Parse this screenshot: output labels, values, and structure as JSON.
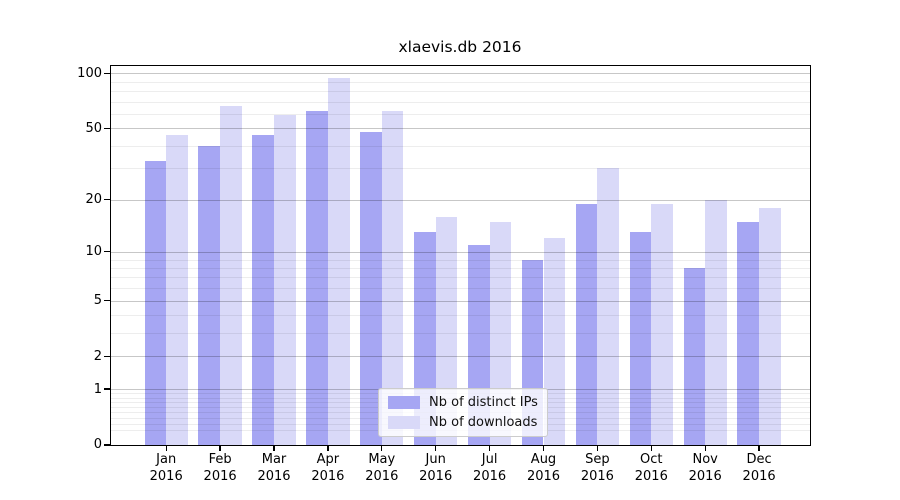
{
  "chart_data": {
    "type": "bar",
    "title": "xlaevis.db 2016",
    "categories": [
      "Jan",
      "Feb",
      "Mar",
      "Apr",
      "May",
      "Jun",
      "Jul",
      "Aug",
      "Sep",
      "Oct",
      "Nov",
      "Dec"
    ],
    "x_tick_line2": "2016",
    "series": [
      {
        "name": "Nb of distinct IPs",
        "color": "#a6a6f3",
        "values": [
          33,
          40,
          46,
          62,
          48,
          13,
          11,
          9,
          19,
          13,
          8,
          15
        ]
      },
      {
        "name": "Nb of downloads",
        "color": "#d9d9f8",
        "values": [
          46,
          66,
          59,
          94,
          62,
          16,
          15,
          12,
          30,
          19,
          20,
          18
        ]
      }
    ],
    "xlabel": "",
    "ylabel": "",
    "yscale": "log1p",
    "yticks": [
      100,
      50,
      20,
      10,
      5,
      2,
      1,
      0
    ],
    "ytick_labels": [
      "100",
      "50",
      "20",
      "10",
      "5",
      "2",
      "1",
      "0"
    ],
    "minor_yticks": [
      0.2,
      0.3,
      0.4,
      0.5,
      0.6,
      0.7,
      0.8,
      0.9,
      3,
      4,
      6,
      7,
      8,
      9,
      30,
      40,
      60,
      70,
      80,
      90
    ],
    "ylim": [
      0,
      109
    ],
    "grid": true,
    "legend_position": "lower center",
    "colors": {
      "major_grid": "rgba(0,0,0,0.22)",
      "minor_grid": "rgba(0,0,0,0.07)",
      "spine": "#000000",
      "background": "#ffffff"
    }
  }
}
